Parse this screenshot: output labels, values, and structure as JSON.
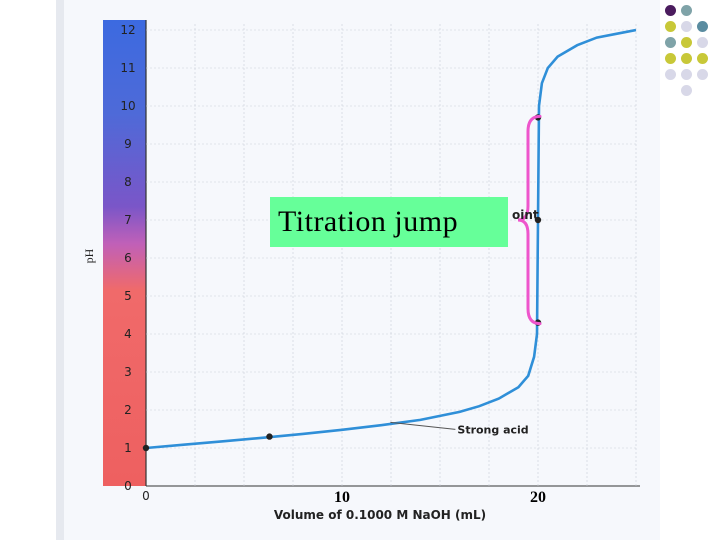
{
  "chart_data": {
    "type": "line",
    "title": "",
    "xlabel": "Volume of 0.1000 M NaOH (mL)",
    "ylabel": "pH",
    "xlim": [
      0,
      25
    ],
    "ylim": [
      0,
      12
    ],
    "x_ticks": [
      "0"
    ],
    "x_overlay_ticks": [
      {
        "label": "10",
        "value": 10
      },
      {
        "label": "20",
        "value": 20
      }
    ],
    "y_ticks": [
      "0",
      "1",
      "2",
      "3",
      "4",
      "5",
      "6",
      "7",
      "8",
      "9",
      "10",
      "11",
      "12"
    ],
    "grid": true,
    "series": [
      {
        "name": "Strong acid",
        "color": "#2f8fd8",
        "x": [
          0,
          2,
          4,
          6,
          8,
          10,
          12,
          14,
          16,
          17,
          18,
          19,
          19.5,
          19.8,
          19.95,
          20,
          20.05,
          20.2,
          20.5,
          21,
          22,
          23,
          24,
          25
        ],
        "y": [
          1.0,
          1.09,
          1.18,
          1.27,
          1.37,
          1.48,
          1.6,
          1.74,
          1.95,
          2.1,
          2.3,
          2.6,
          2.9,
          3.4,
          4.0,
          7.0,
          10.0,
          10.6,
          11.0,
          11.3,
          11.6,
          11.8,
          11.9,
          12.0
        ]
      }
    ],
    "markers": [
      {
        "x": 0,
        "y": 1.0
      },
      {
        "x": 6.3,
        "y": 1.3
      },
      {
        "x": 20,
        "y": 4.3
      },
      {
        "x": 20,
        "y": 7.0
      },
      {
        "x": 20,
        "y": 9.7
      }
    ],
    "bracket": {
      "label": "Titration jump",
      "y_from": 4.3,
      "y_to": 9.7,
      "color": "#ee55cc"
    },
    "annotations": [
      {
        "text": "Strong acid",
        "x": 14,
        "y": 1.7
      },
      {
        "text": "oint",
        "x": 20,
        "y": 7.0
      }
    ]
  },
  "overlay": {
    "jump_label": "Titration jump",
    "equiv_partial": "oint"
  },
  "decoration": {
    "dots": [
      "#4b1c5e",
      "#7fa3a8",
      "#c8c838",
      "#d8d8e8",
      "#5a8ca0",
      "#7fa3a8",
      "#c8c838",
      "#d8d8e8",
      "#c8c838",
      "#c8c838",
      "#c8c838",
      "#d8d8e8",
      "#d8d8e8",
      "#d8d8e8",
      "#d8d8e8"
    ]
  }
}
